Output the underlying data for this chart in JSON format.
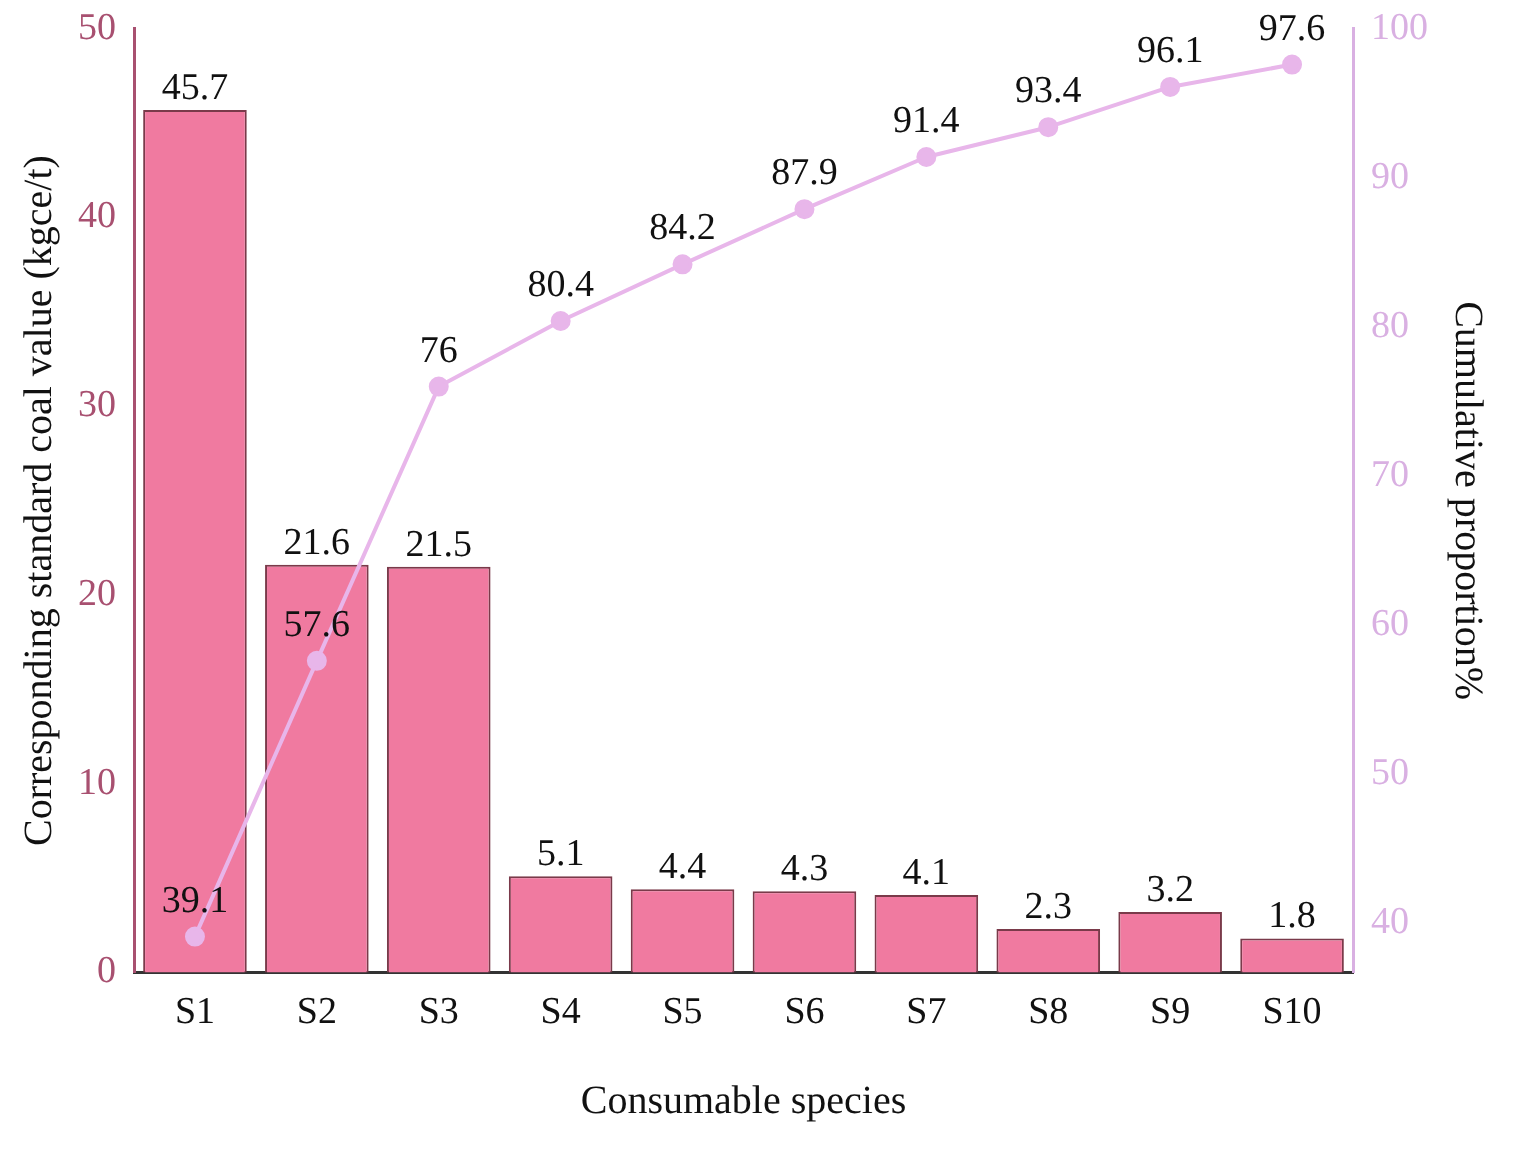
{
  "chart_data": {
    "type": "bar",
    "xlabel": "Consumable species",
    "ylabel": "Corresponding standard coal value (kgce/t)",
    "y2label": "Cumulative proportion%",
    "categories": [
      "S1",
      "S2",
      "S3",
      "S4",
      "S5",
      "S6",
      "S7",
      "S8",
      "S9",
      "S10"
    ],
    "series": [
      {
        "color": "#f07aa0",
        "values": [
          45.7,
          21.6,
          21.5,
          5.1,
          4.4,
          4.3,
          4.1,
          2.3,
          3.2,
          1.8
        ]
      },
      {
        "type": "line",
        "axis": "y2",
        "color": "#e8b6ea",
        "marker": "circle",
        "values": [
          39.1,
          57.6,
          76,
          80.4,
          84.2,
          87.9,
          91.4,
          93.4,
          96.1,
          97.6
        ]
      }
    ],
    "ylim": [
      0,
      50
    ],
    "yticks": [
      0,
      10,
      20,
      30,
      40,
      50
    ],
    "y2lim": [
      36.7,
      100
    ],
    "y2ticks": [
      40,
      50,
      60,
      70,
      80,
      90,
      100
    ],
    "data_labels": true,
    "grid": false,
    "legend": false
  }
}
